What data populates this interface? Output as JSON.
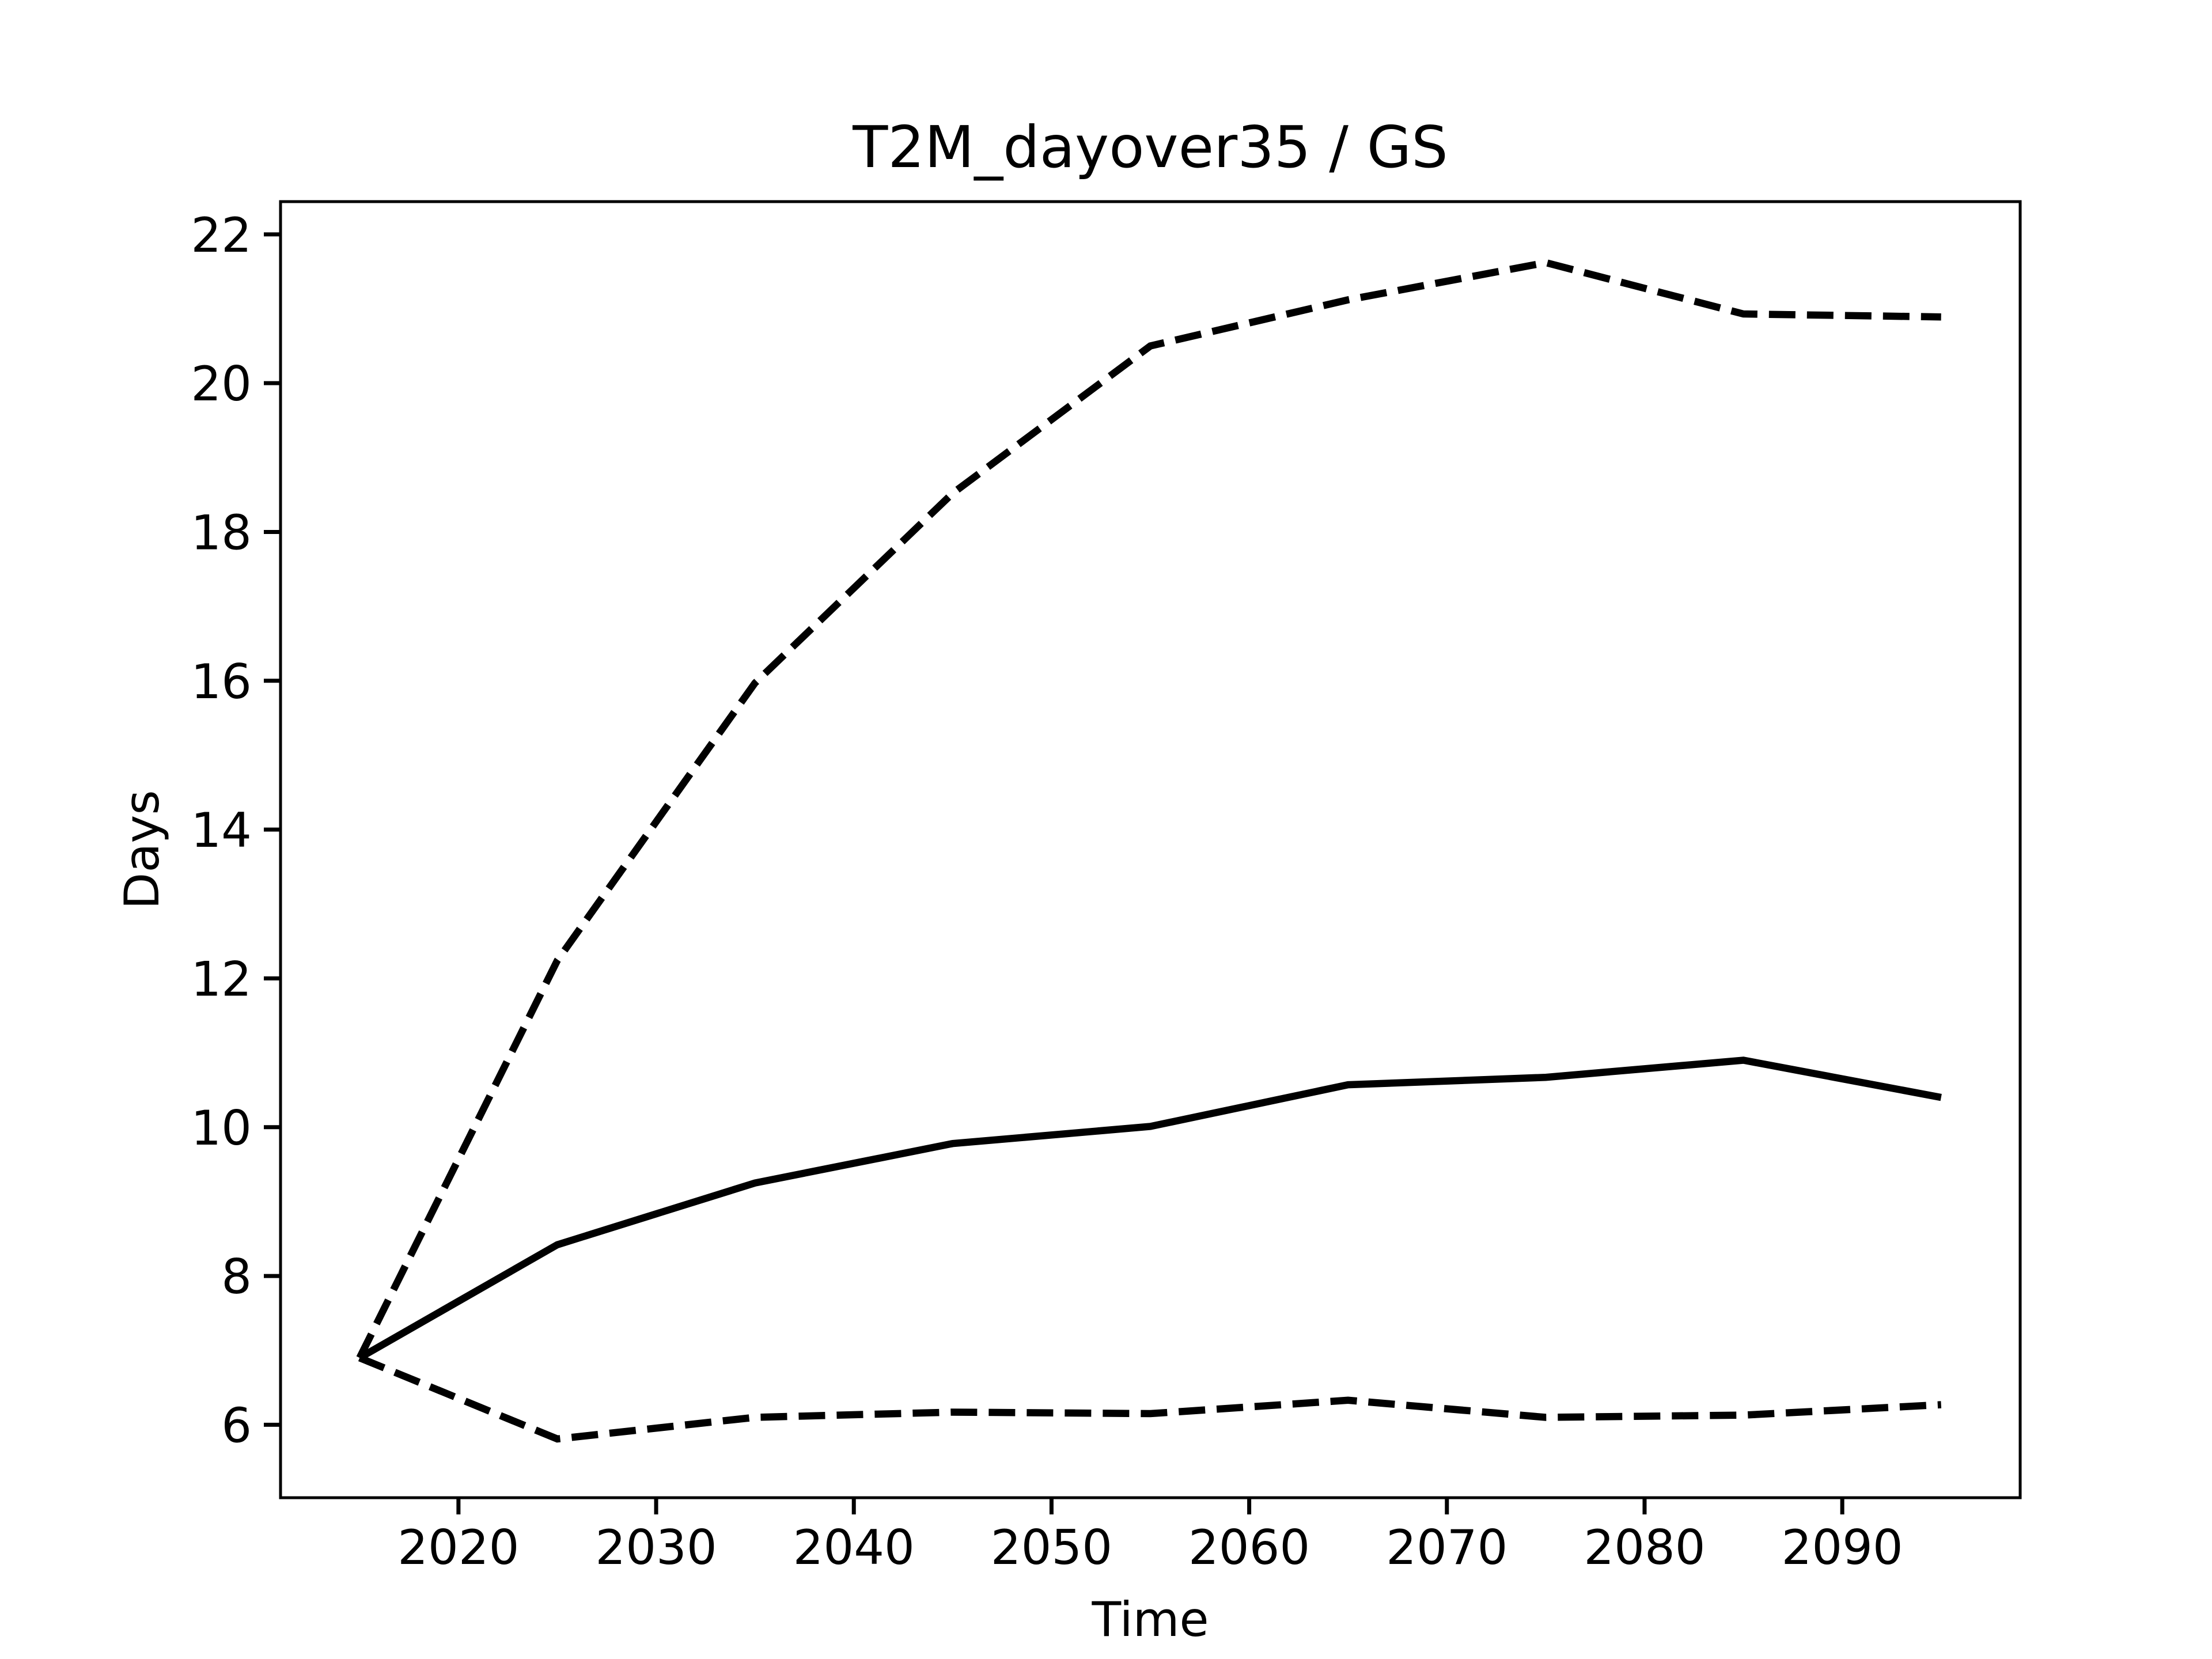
{
  "chart_data": {
    "type": "line",
    "title": "T2M_dayover35 / GS",
    "x_label": "Time",
    "y_label": "Days",
    "x": [
      2015,
      2025,
      2035,
      2045,
      2055,
      2065,
      2075,
      2085,
      2095
    ],
    "series": [
      {
        "color": "#000000",
        "style": "solid",
        "values": [
          6.9,
          8.42,
          9.25,
          9.78,
          10.01,
          10.57,
          10.67,
          10.9,
          10.4
        ]
      },
      {
        "color": "#000000",
        "style": "dashed",
        "values": [
          6.9,
          12.24,
          15.97,
          18.52,
          20.5,
          21.12,
          21.62,
          20.93,
          20.89
        ]
      },
      {
        "color": "#000000",
        "style": "dashed",
        "values": [
          6.9,
          5.81,
          6.1,
          6.17,
          6.15,
          6.33,
          6.1,
          6.13,
          6.27
        ]
      }
    ],
    "xlim": [
      2011,
      2099
    ],
    "xticks": [
      2020,
      2030,
      2040,
      2050,
      2060,
      2070,
      2080,
      2090
    ],
    "ylim": [
      5.02,
      22.44
    ],
    "yticks": [
      6,
      8,
      10,
      12,
      14,
      16,
      18,
      20,
      22
    ],
    "grid": false
  }
}
